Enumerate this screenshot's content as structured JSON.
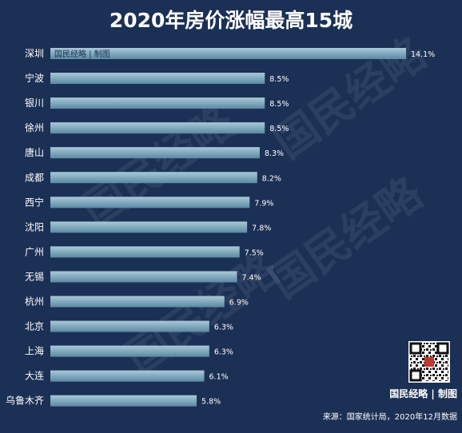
{
  "chart_data": {
    "type": "bar",
    "orientation": "horizontal",
    "title": "2020年房价涨幅最高15城",
    "categories": [
      "深圳",
      "宁波",
      "银川",
      "徐州",
      "唐山",
      "成都",
      "西宁",
      "沈阳",
      "广州",
      "无锡",
      "杭州",
      "北京",
      "上海",
      "大连",
      "乌鲁木齐"
    ],
    "values": [
      14.1,
      8.5,
      8.5,
      8.5,
      8.3,
      8.2,
      7.9,
      7.8,
      7.5,
      7.4,
      6.9,
      6.3,
      6.3,
      6.1,
      5.8
    ],
    "value_labels": [
      "14.1%",
      "8.5%",
      "8.5%",
      "8.5%",
      "8.3%",
      "8.2%",
      "7.9%",
      "7.8%",
      "7.5%",
      "7.4%",
      "6.9%",
      "6.3%",
      "6.3%",
      "6.1%",
      "5.8%"
    ],
    "xlim": [
      0,
      14.1
    ],
    "grid": false,
    "legend": "none",
    "colors": {
      "background": "#1b3055",
      "bar_top": "#a9c9d9",
      "bar_bottom": "#5b8aa2",
      "text": "#ffffff"
    }
  },
  "credit_in_bar": "国民经略 | 制图",
  "watermark": "国民经略",
  "brand": "国民经略 | 制图",
  "source": "来源：国家统计局，2020年12月数据",
  "qr_icon": "qr-code-icon"
}
